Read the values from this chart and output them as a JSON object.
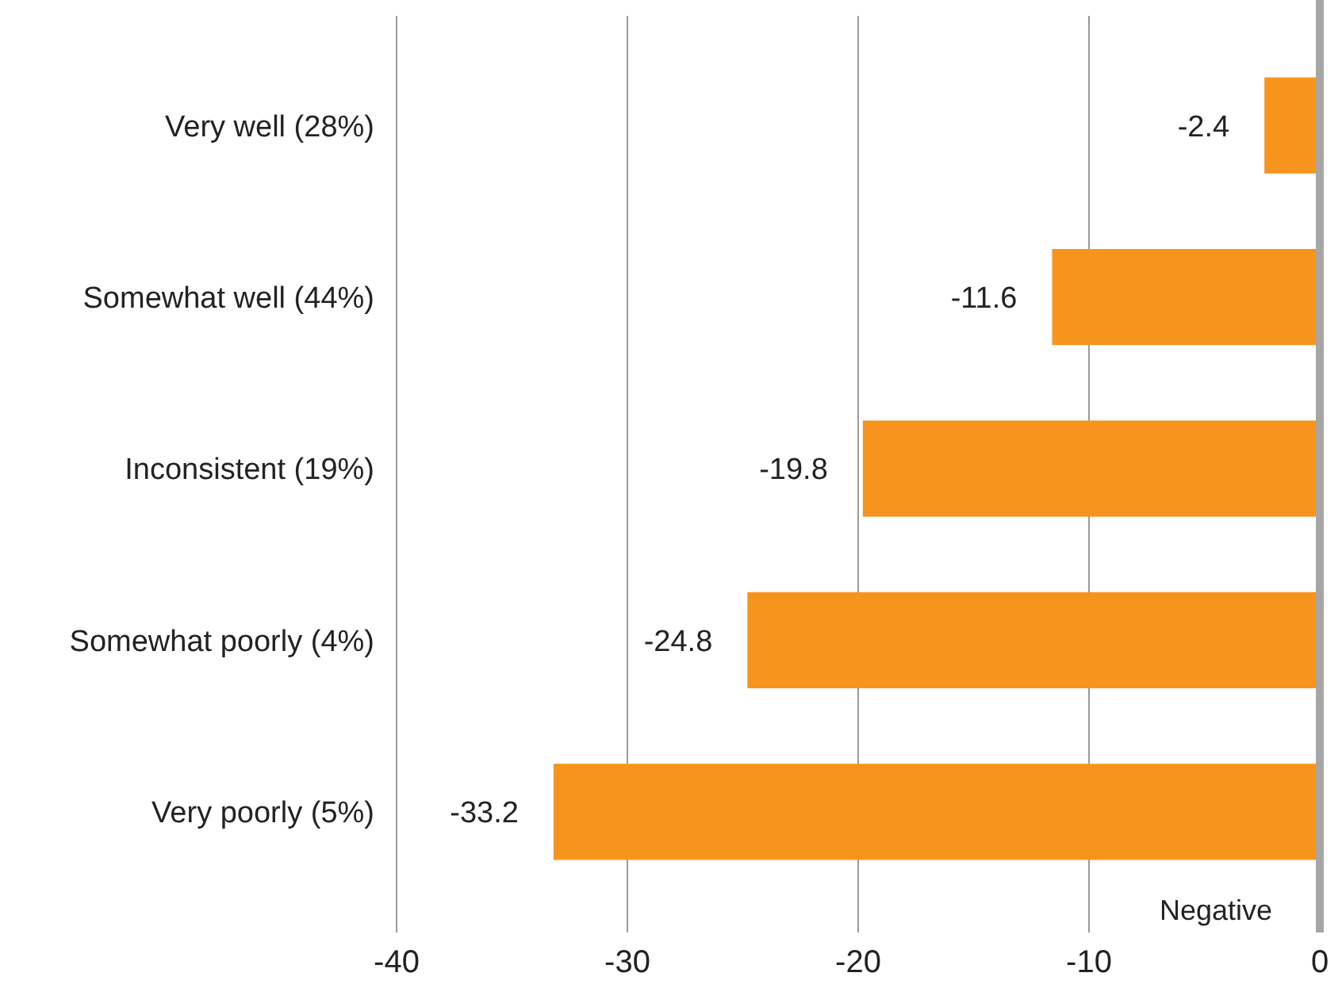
{
  "chart_data": {
    "type": "bar",
    "orientation": "horizontal",
    "categories": [
      "Very well (28%)",
      "Somewhat well (44%)",
      "Inconsistent (19%)",
      "Somewhat poorly (4%)",
      "Very poorly (5%)"
    ],
    "values": [
      -2.4,
      -11.6,
      -19.8,
      -24.8,
      -33.2
    ],
    "color": "#f7941d",
    "xlim": [
      -40,
      0
    ],
    "xticks": [
      -40,
      -30,
      -20,
      -10,
      0
    ],
    "grid": "x",
    "data_labels": true,
    "annotations": [
      "Negative"
    ]
  }
}
